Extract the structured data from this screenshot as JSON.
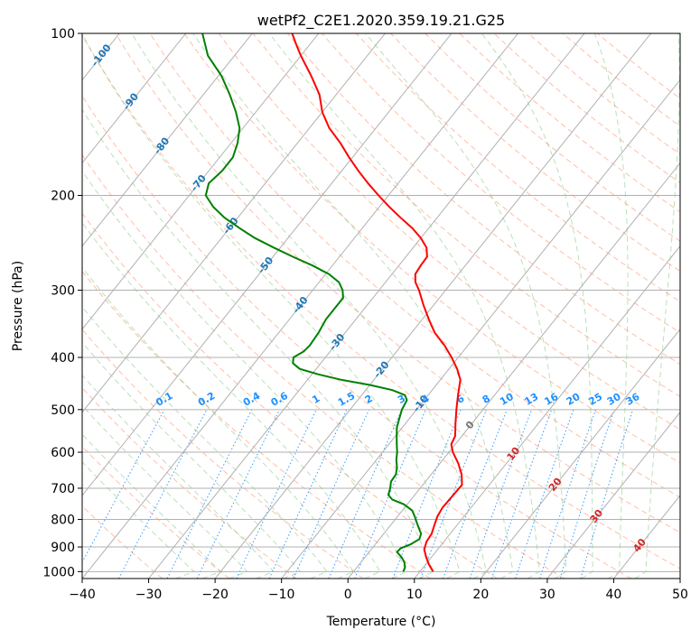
{
  "chart_data": {
    "type": "skew-t",
    "title": "wetPf2_C2E1.2020.359.19.21.G25",
    "xlabel": "Temperature (°C)",
    "ylabel": "Pressure (hPa)",
    "xlim": [
      -40,
      50
    ],
    "ylim": [
      1030,
      100
    ],
    "x_ticks": [
      "−40",
      "−30",
      "−20",
      "−10",
      "0",
      "10",
      "20",
      "30",
      "40",
      "50"
    ],
    "y_ticks": [
      "100",
      "200",
      "300",
      "400",
      "500",
      "600",
      "700",
      "800",
      "900",
      "1000"
    ],
    "grid": true,
    "colors": {
      "temperature": "#ff0000",
      "dewpoint": "#008000",
      "isotherm_labels": "#1f77b4",
      "mixing_ratio_labels": "#1e90ff",
      "isotherm_above_zero_labels": "#d62728",
      "dry_adiabat": "#ff7f50",
      "moist_adiabat": "#66bb66",
      "mixing_ratio": "#1e90ff",
      "grid": "#b0b0b0"
    },
    "series": [
      {
        "kind": "temperature",
        "points": [
          {
            "p": 1000,
            "t": 12.0
          },
          {
            "p": 970,
            "t": 10.5
          },
          {
            "p": 940,
            "t": 9.2
          },
          {
            "p": 910,
            "t": 8.0
          },
          {
            "p": 880,
            "t": 7.4
          },
          {
            "p": 850,
            "t": 7.2
          },
          {
            "p": 820,
            "t": 6.6
          },
          {
            "p": 790,
            "t": 6.0
          },
          {
            "p": 760,
            "t": 5.7
          },
          {
            "p": 720,
            "t": 5.8
          },
          {
            "p": 690,
            "t": 5.9
          },
          {
            "p": 660,
            "t": 4.6
          },
          {
            "p": 630,
            "t": 2.8
          },
          {
            "p": 600,
            "t": 0.6
          },
          {
            "p": 580,
            "t": -0.6
          },
          {
            "p": 560,
            "t": -1.0
          },
          {
            "p": 530,
            "t": -2.5
          },
          {
            "p": 500,
            "t": -4.0
          },
          {
            "p": 470,
            "t": -5.5
          },
          {
            "p": 440,
            "t": -7.0
          },
          {
            "p": 420,
            "t": -8.8
          },
          {
            "p": 400,
            "t": -11.0
          },
          {
            "p": 380,
            "t": -13.5
          },
          {
            "p": 360,
            "t": -16.5
          },
          {
            "p": 340,
            "t": -19.0
          },
          {
            "p": 320,
            "t": -21.5
          },
          {
            "p": 300,
            "t": -24.0
          },
          {
            "p": 290,
            "t": -25.5
          },
          {
            "p": 280,
            "t": -26.5
          },
          {
            "p": 270,
            "t": -26.7
          },
          {
            "p": 260,
            "t": -26.8
          },
          {
            "p": 250,
            "t": -28.0
          },
          {
            "p": 240,
            "t": -30.0
          },
          {
            "p": 230,
            "t": -32.5
          },
          {
            "p": 220,
            "t": -35.5
          },
          {
            "p": 210,
            "t": -38.5
          },
          {
            "p": 200,
            "t": -41.5
          },
          {
            "p": 190,
            "t": -44.5
          },
          {
            "p": 180,
            "t": -47.5
          },
          {
            "p": 170,
            "t": -50.5
          },
          {
            "p": 160,
            "t": -53.5
          },
          {
            "p": 150,
            "t": -57.0
          },
          {
            "p": 140,
            "t": -60.0
          },
          {
            "p": 130,
            "t": -62.5
          },
          {
            "p": 120,
            "t": -66.0
          },
          {
            "p": 110,
            "t": -70.0
          },
          {
            "p": 105,
            "t": -72.0
          },
          {
            "p": 100,
            "t": -74.0
          }
        ]
      },
      {
        "kind": "dewpoint",
        "points": [
          {
            "p": 1000,
            "t": 7.5
          },
          {
            "p": 980,
            "t": 7.2
          },
          {
            "p": 960,
            "t": 6.5
          },
          {
            "p": 940,
            "t": 5.5
          },
          {
            "p": 920,
            "t": 4.2
          },
          {
            "p": 905,
            "t": 4.3
          },
          {
            "p": 890,
            "t": 5.3
          },
          {
            "p": 870,
            "t": 6.0
          },
          {
            "p": 850,
            "t": 5.6
          },
          {
            "p": 830,
            "t": 4.6
          },
          {
            "p": 810,
            "t": 3.6
          },
          {
            "p": 790,
            "t": 2.6
          },
          {
            "p": 770,
            "t": 1.5
          },
          {
            "p": 750,
            "t": -0.5
          },
          {
            "p": 735,
            "t": -2.8
          },
          {
            "p": 720,
            "t": -4.0
          },
          {
            "p": 700,
            "t": -4.5
          },
          {
            "p": 680,
            "t": -5.2
          },
          {
            "p": 660,
            "t": -5.3
          },
          {
            "p": 640,
            "t": -6.0
          },
          {
            "p": 620,
            "t": -7.0
          },
          {
            "p": 600,
            "t": -7.8
          },
          {
            "p": 580,
            "t": -8.8
          },
          {
            "p": 560,
            "t": -9.8
          },
          {
            "p": 540,
            "t": -10.8
          },
          {
            "p": 520,
            "t": -11.5
          },
          {
            "p": 500,
            "t": -12.2
          },
          {
            "p": 480,
            "t": -12.6
          },
          {
            "p": 470,
            "t": -13.5
          },
          {
            "p": 460,
            "t": -16.0
          },
          {
            "p": 450,
            "t": -20.0
          },
          {
            "p": 440,
            "t": -25.0
          },
          {
            "p": 430,
            "t": -29.0
          },
          {
            "p": 420,
            "t": -32.5
          },
          {
            "p": 410,
            "t": -34.2
          },
          {
            "p": 400,
            "t": -34.8
          },
          {
            "p": 390,
            "t": -34.0
          },
          {
            "p": 380,
            "t": -33.8
          },
          {
            "p": 360,
            "t": -34.0
          },
          {
            "p": 340,
            "t": -34.5
          },
          {
            "p": 320,
            "t": -34.5
          },
          {
            "p": 310,
            "t": -34.5
          },
          {
            "p": 300,
            "t": -35.5
          },
          {
            "p": 290,
            "t": -37.0
          },
          {
            "p": 280,
            "t": -39.5
          },
          {
            "p": 270,
            "t": -43.0
          },
          {
            "p": 260,
            "t": -47.0
          },
          {
            "p": 250,
            "t": -51.0
          },
          {
            "p": 240,
            "t": -55.0
          },
          {
            "p": 230,
            "t": -58.5
          },
          {
            "p": 220,
            "t": -62.0
          },
          {
            "p": 210,
            "t": -65.0
          },
          {
            "p": 200,
            "t": -67.5
          },
          {
            "p": 190,
            "t": -68.5
          },
          {
            "p": 180,
            "t": -68.0
          },
          {
            "p": 170,
            "t": -68.0
          },
          {
            "p": 160,
            "t": -69.0
          },
          {
            "p": 150,
            "t": -70.5
          },
          {
            "p": 140,
            "t": -73.0
          },
          {
            "p": 130,
            "t": -76.0
          },
          {
            "p": 120,
            "t": -79.5
          },
          {
            "p": 110,
            "t": -84.0
          },
          {
            "p": 100,
            "t": -87.5
          }
        ]
      }
    ],
    "isotherm_labels": [
      {
        "text": "-100",
        "t": -100,
        "p": 110
      },
      {
        "text": "-90",
        "t": -90,
        "p": 134
      },
      {
        "text": "-80",
        "t": -80,
        "p": 162
      },
      {
        "text": "-70",
        "t": -70,
        "p": 190
      },
      {
        "text": "-60",
        "t": -60,
        "p": 228
      },
      {
        "text": "-50",
        "t": -50,
        "p": 270
      },
      {
        "text": "-40",
        "t": -40,
        "p": 320
      },
      {
        "text": "-30",
        "t": -30,
        "p": 375
      },
      {
        "text": "-20",
        "t": -20,
        "p": 422
      },
      {
        "text": "-10",
        "t": -10,
        "p": 488
      }
    ],
    "isotherm_zero_label": {
      "text": "0",
      "t": 0,
      "p": 535
    },
    "isotherm_positive_labels": [
      {
        "text": "10",
        "t": 10,
        "p": 605
      },
      {
        "text": "20",
        "t": 20,
        "p": 690
      },
      {
        "text": "30",
        "t": 30,
        "p": 790
      },
      {
        "text": "40",
        "t": 40,
        "p": 895
      }
    ],
    "mixing_ratio_labels": [
      {
        "text": "0.1",
        "w": 0.1
      },
      {
        "text": "0.2",
        "w": 0.2
      },
      {
        "text": "0.4",
        "w": 0.4
      },
      {
        "text": "0.6",
        "w": 0.6
      },
      {
        "text": "1",
        "w": 1
      },
      {
        "text": "1.5",
        "w": 1.5
      },
      {
        "text": "2",
        "w": 2
      },
      {
        "text": "3",
        "w": 3
      },
      {
        "text": "4",
        "w": 4
      },
      {
        "text": "6",
        "w": 6
      },
      {
        "text": "8",
        "w": 8
      },
      {
        "text": "10",
        "w": 10
      },
      {
        "text": "13",
        "w": 13
      },
      {
        "text": "16",
        "w": 16
      },
      {
        "text": "20",
        "w": 20
      },
      {
        "text": "25",
        "w": 25
      },
      {
        "text": "30",
        "w": 30
      },
      {
        "text": "36",
        "w": 36
      }
    ],
    "mixing_ratio_label_pressure": 500
  }
}
